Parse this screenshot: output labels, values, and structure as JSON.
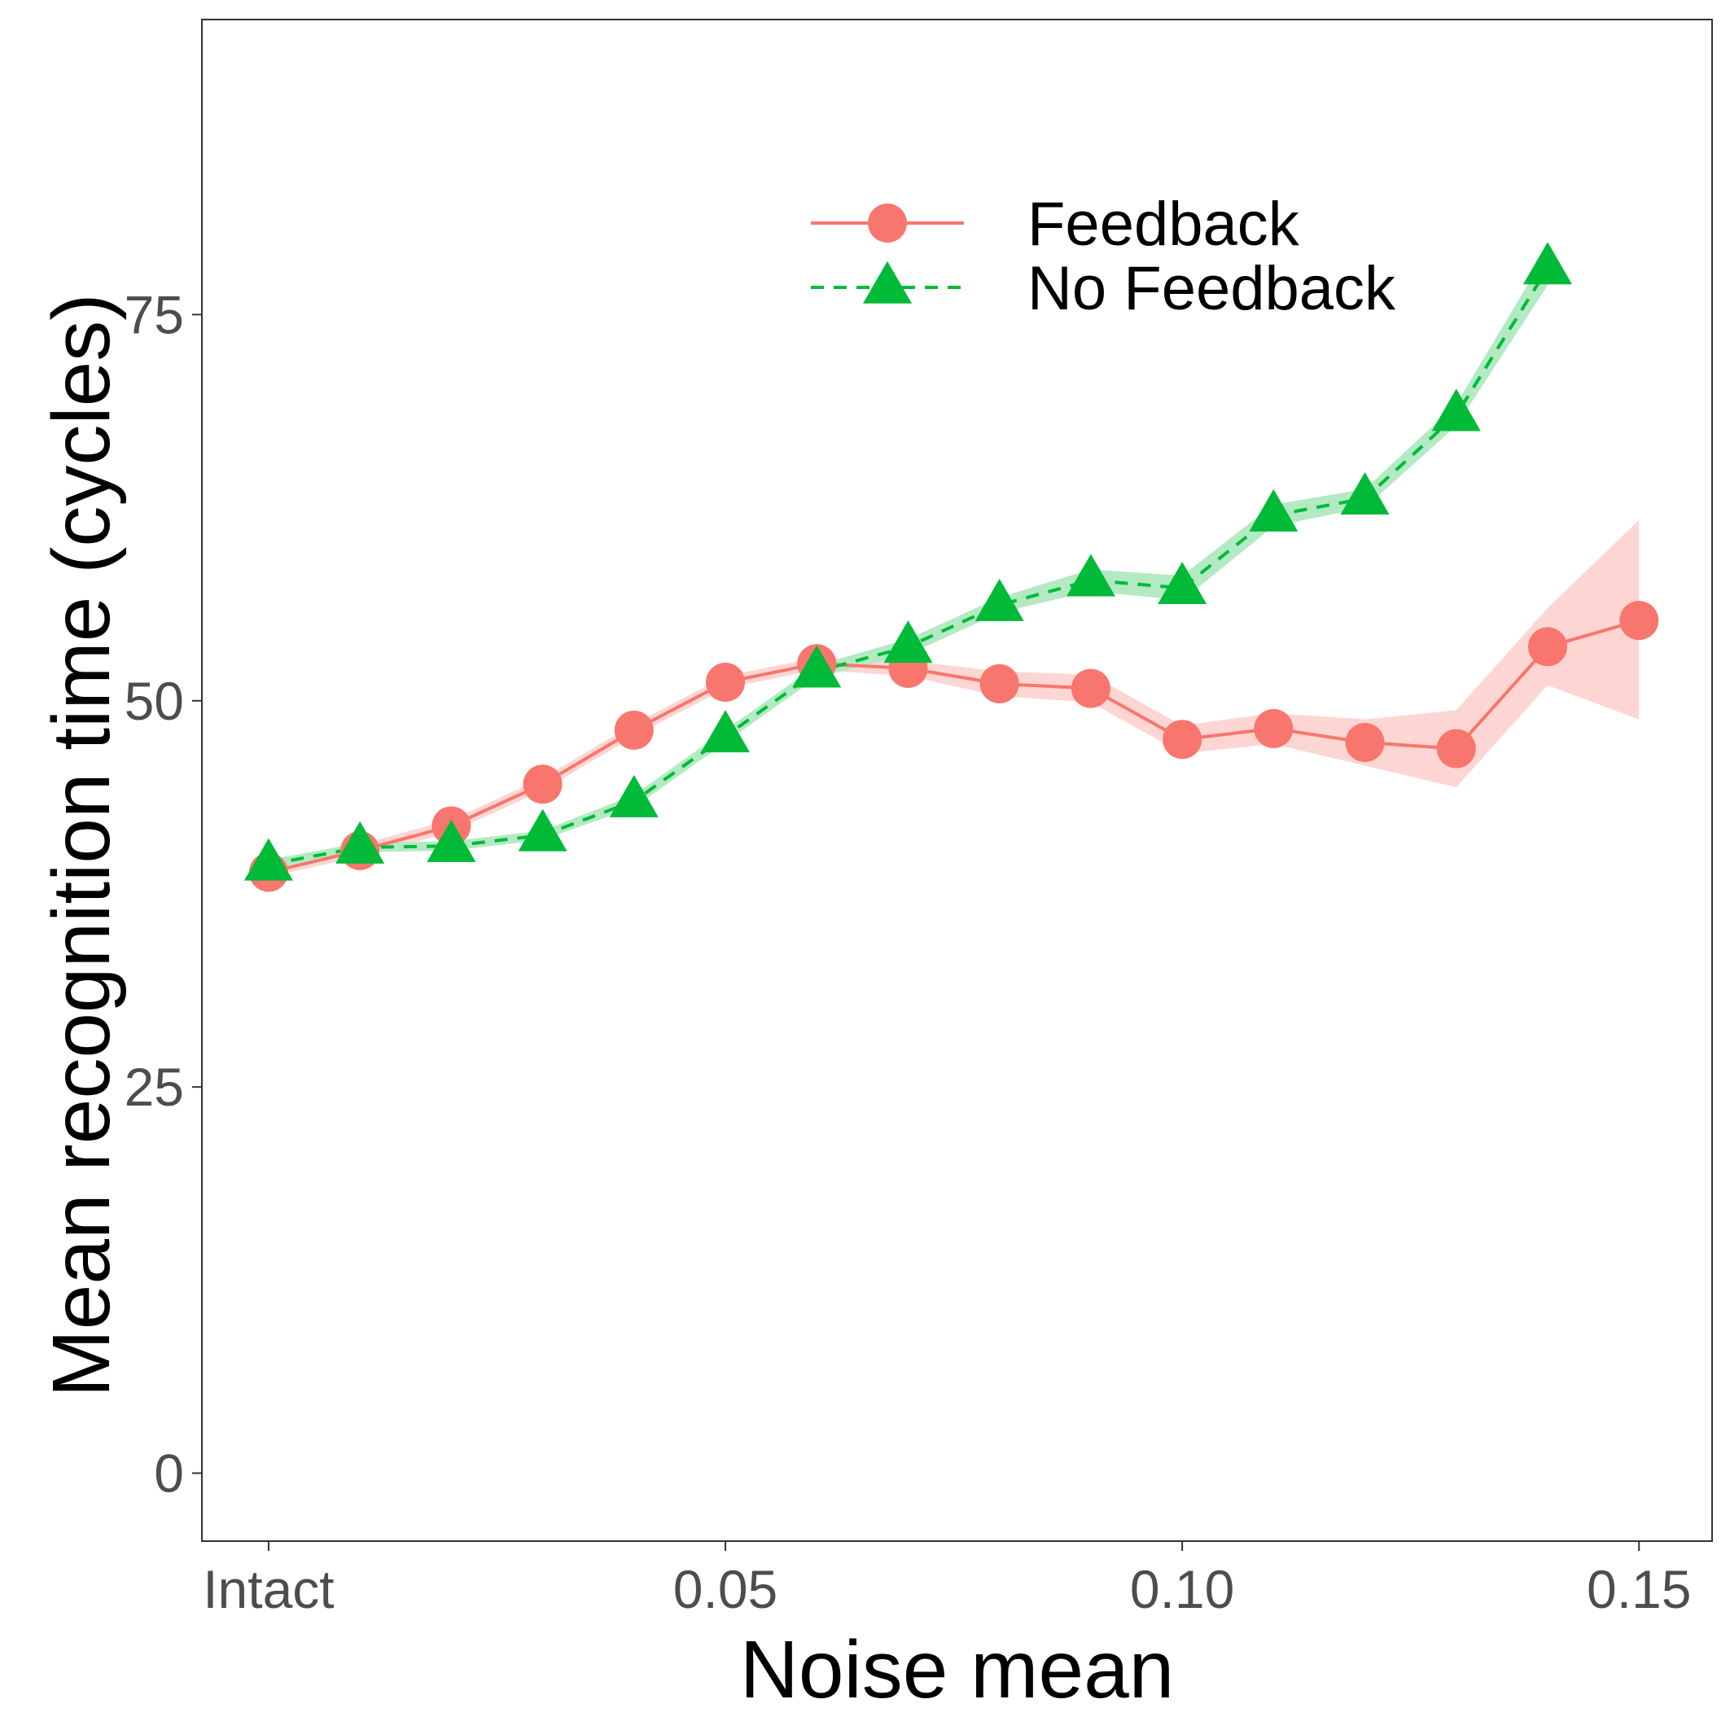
{
  "chart_data": {
    "type": "line",
    "xlabel": "Noise mean",
    "ylabel": "Mean recognition time (cycles)",
    "x": [
      0,
      0.01,
      0.02,
      0.03,
      0.04,
      0.05,
      0.06,
      0.07,
      0.08,
      0.09,
      0.1,
      0.11,
      0.12,
      0.13,
      0.14,
      0.15
    ],
    "xlim": [
      -0.0073,
      0.158
    ],
    "ylim": [
      -4.4,
      94.1
    ],
    "xticks": [
      {
        "value": 0,
        "label": "Intact"
      },
      {
        "value": 0.05,
        "label": "0.05"
      },
      {
        "value": 0.1,
        "label": "0.10"
      },
      {
        "value": 0.15,
        "label": "0.15"
      }
    ],
    "yticks": [
      {
        "value": 0,
        "label": "0"
      },
      {
        "value": 25,
        "label": "25"
      },
      {
        "value": 50,
        "label": "50"
      },
      {
        "value": 75,
        "label": "75"
      }
    ],
    "grid": false,
    "legend": "top-right inside",
    "series": [
      {
        "name": "Feedback",
        "color": "#F8766D",
        "marker": "circle",
        "line": "solid",
        "x": [
          0,
          0.01,
          0.02,
          0.03,
          0.04,
          0.05,
          0.06,
          0.07,
          0.08,
          0.09,
          0.1,
          0.11,
          0.12,
          0.13,
          0.14,
          0.15
        ],
        "values": [
          38.9,
          40.3,
          41.9,
          44.6,
          48.1,
          51.2,
          52.4,
          52.1,
          51.1,
          50.8,
          47.5,
          48.2,
          47.3,
          46.9,
          53.5,
          55.2
        ],
        "ci_low": [
          38.6,
          39.9,
          41.5,
          44.2,
          47.7,
          50.8,
          52.0,
          51.6,
          50.3,
          49.9,
          46.6,
          47.2,
          45.8,
          44.4,
          51.0,
          48.8
        ],
        "ci_high": [
          39.2,
          40.7,
          42.3,
          45.0,
          48.5,
          51.6,
          52.8,
          52.6,
          51.9,
          51.7,
          48.4,
          49.2,
          48.8,
          49.4,
          56.0,
          61.7
        ]
      },
      {
        "name": "No Feedback",
        "color": "#00BA38",
        "marker": "triangle",
        "line": "dashed",
        "x": [
          0,
          0.01,
          0.02,
          0.03,
          0.04,
          0.05,
          0.06,
          0.07,
          0.08,
          0.09,
          0.1,
          0.11,
          0.12,
          0.13,
          0.14
        ],
        "values": [
          39.4,
          40.5,
          40.6,
          41.3,
          43.5,
          47.7,
          51.9,
          53.5,
          56.2,
          57.8,
          57.3,
          62.0,
          63.1,
          68.5,
          78.0
        ],
        "ci_low": [
          39.1,
          40.2,
          40.3,
          41.0,
          43.1,
          47.3,
          51.5,
          53.0,
          55.7,
          57.1,
          56.5,
          61.3,
          62.5,
          67.8,
          76.9
        ],
        "ci_high": [
          39.7,
          40.8,
          40.9,
          41.6,
          43.9,
          48.1,
          52.3,
          54.0,
          56.7,
          58.5,
          58.1,
          62.7,
          63.7,
          69.2,
          79.1
        ]
      }
    ]
  }
}
